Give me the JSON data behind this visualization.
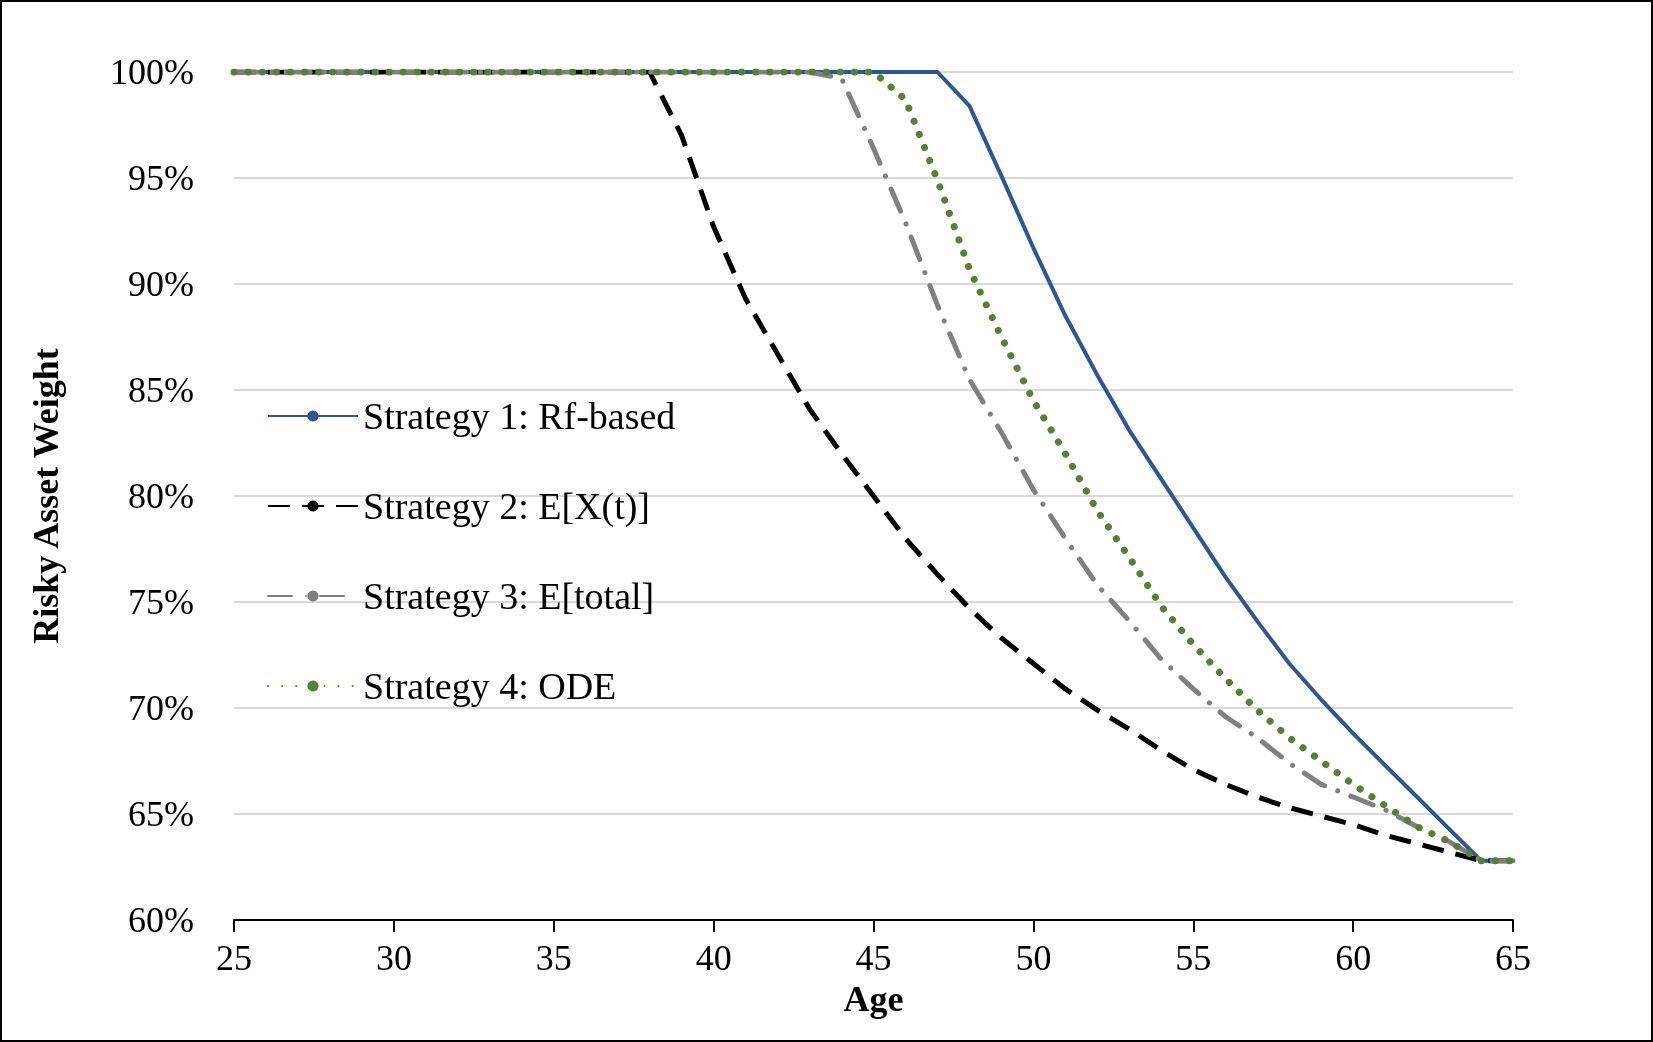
{
  "chart_data": {
    "type": "line",
    "xlabel": "Age",
    "ylabel": "Risky Asset Weight",
    "x": [
      25,
      26,
      27,
      28,
      29,
      30,
      31,
      32,
      33,
      34,
      35,
      36,
      37,
      38,
      39,
      40,
      41,
      42,
      43,
      44,
      45,
      46,
      47,
      48,
      49,
      50,
      51,
      52,
      53,
      54,
      55,
      56,
      57,
      58,
      59,
      60,
      61,
      62,
      63,
      64,
      65
    ],
    "series": [
      {
        "name": "Strategy 1: Rf-based",
        "color": "#2f5597",
        "line_style": "solid",
        "values": [
          100,
          100,
          100,
          100,
          100,
          100,
          100,
          100,
          100,
          100,
          100,
          100,
          100,
          100,
          100,
          100,
          100,
          100,
          100,
          100,
          100,
          100,
          100,
          98.4,
          95.1,
          91.7,
          88.5,
          85.7,
          83.1,
          80.8,
          78.5,
          76.2,
          74.1,
          72.1,
          70.4,
          68.8,
          67.3,
          65.8,
          64.3,
          62.8,
          62.8
        ]
      },
      {
        "name": "Strategy 2: E[X(t)]",
        "color": "#000000",
        "line_style": "dashed",
        "values": [
          100,
          100,
          100,
          100,
          100,
          100,
          100,
          100,
          100,
          100,
          100,
          100,
          100,
          100,
          97.0,
          92.7,
          89.3,
          86.7,
          84.1,
          82.0,
          80.0,
          78.0,
          76.3,
          74.7,
          73.3,
          72.1,
          70.9,
          69.9,
          69.0,
          68.0,
          67.1,
          66.4,
          65.8,
          65.3,
          64.9,
          64.5,
          64.0,
          63.6,
          63.2,
          62.8,
          62.8
        ]
      },
      {
        "name": "Strategy 3: E[total]",
        "color": "#808080",
        "line_style": "dashdot",
        "values": [
          100,
          100,
          100,
          100,
          100,
          100,
          100,
          100,
          100,
          100,
          100,
          100,
          100,
          100,
          100,
          100,
          100,
          100,
          100,
          99.7,
          96.4,
          92.9,
          89.0,
          85.5,
          83.0,
          80.3,
          78.0,
          75.8,
          74.1,
          72.3,
          70.9,
          69.6,
          68.6,
          67.4,
          66.4,
          65.8,
          65.2,
          64.4,
          63.7,
          62.8,
          62.8
        ]
      },
      {
        "name": "Strategy 4: ODE",
        "color": "#548235",
        "line_style": "dotted",
        "values": [
          100,
          100,
          100,
          100,
          100,
          100,
          100,
          100,
          100,
          100,
          100,
          100,
          100,
          100,
          100,
          100,
          100,
          100,
          100,
          100,
          100,
          98.7,
          94.9,
          90.7,
          87.5,
          84.5,
          82.0,
          79.3,
          77.1,
          74.8,
          73.0,
          71.4,
          69.9,
          68.6,
          67.5,
          66.4,
          65.4,
          64.4,
          63.7,
          62.8,
          62.8
        ]
      }
    ],
    "xlim": [
      25,
      65
    ],
    "xticks": [
      25,
      30,
      35,
      40,
      45,
      50,
      55,
      60,
      65
    ],
    "ylim": [
      60,
      100
    ],
    "yticks": [
      {
        "value": 60,
        "label": "60%"
      },
      {
        "value": 65,
        "label": "65%"
      },
      {
        "value": 70,
        "label": "70%"
      },
      {
        "value": 75,
        "label": "75%"
      },
      {
        "value": 80,
        "label": "80%"
      },
      {
        "value": 85,
        "label": "85%"
      },
      {
        "value": 90,
        "label": "90%"
      },
      {
        "value": 95,
        "label": "95%"
      },
      {
        "value": 100,
        "label": "100%"
      }
    ],
    "grid": "y",
    "legend": "left",
    "marker": "none"
  }
}
